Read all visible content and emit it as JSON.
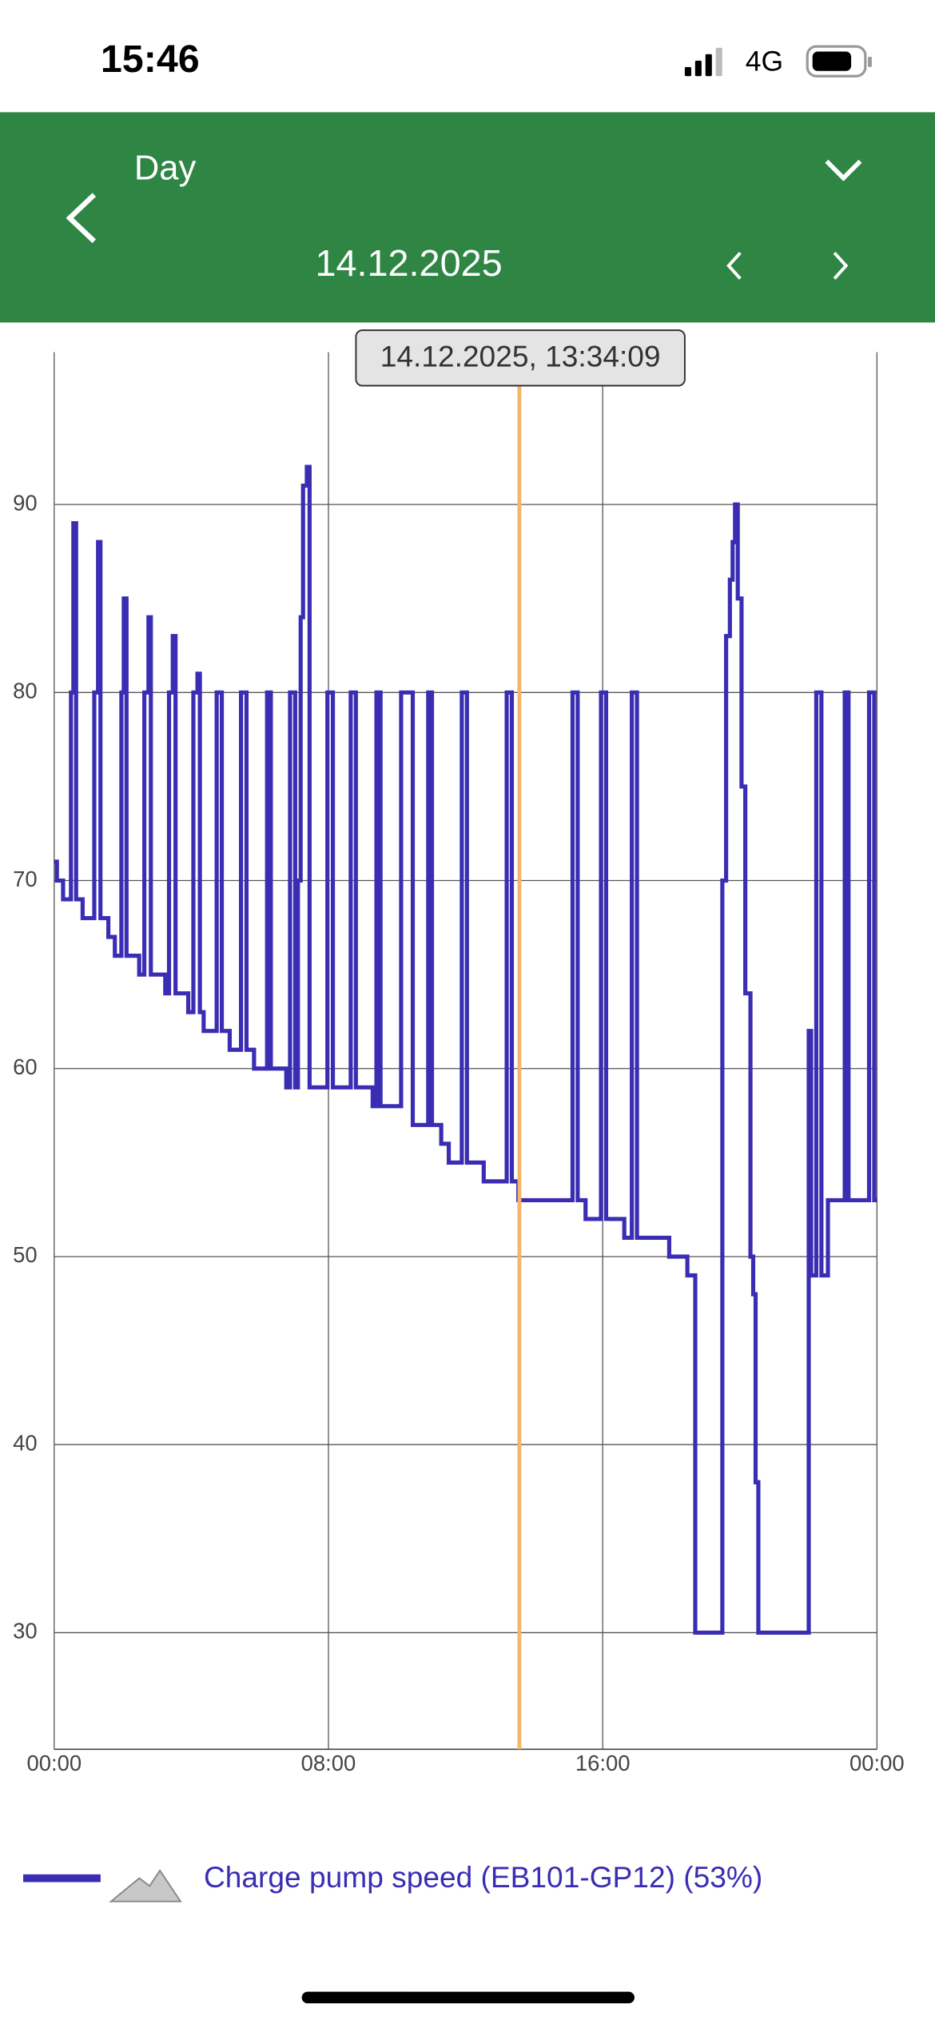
{
  "status_bar": {
    "time": "15:46",
    "network": "4G"
  },
  "header": {
    "title": "Day",
    "date": "14.12.2025"
  },
  "chart_data": {
    "type": "line",
    "step": "post",
    "x": [
      0,
      0.08,
      0.26,
      0.49,
      0.56,
      0.64,
      0.83,
      1.17,
      1.28,
      1.35,
      1.58,
      1.77,
      1.96,
      2.03,
      2.11,
      2.48,
      2.63,
      2.75,
      2.82,
      3.24,
      3.35,
      3.46,
      3.54,
      3.91,
      4.06,
      4.18,
      4.25,
      4.36,
      4.74,
      4.89,
      5.12,
      5.45,
      5.61,
      5.83,
      6.21,
      6.32,
      6.77,
      6.88,
      7.03,
      7.11,
      7.19,
      7.26,
      7.37,
      7.45,
      7.97,
      8.13,
      8.65,
      8.8,
      9.29,
      9.4,
      9.52,
      10.12,
      10.46,
      10.91,
      11.02,
      11.29,
      11.51,
      11.89,
      12.04,
      12.53,
      13.2,
      13.35,
      13.54,
      15.12,
      15.27,
      15.5,
      15.95,
      16.1,
      16.63,
      16.85,
      17.0,
      17.94,
      18.47,
      18.7,
      19.49,
      19.6,
      19.71,
      19.79,
      19.86,
      19.94,
      20.05,
      20.16,
      20.31,
      20.39,
      20.46,
      20.54,
      22.01,
      22.08,
      22.23,
      22.38,
      22.57,
      23.06,
      23.17,
      23.77,
      23.92,
      24
    ],
    "series": [
      {
        "name": "Charge pump speed (EB101-GP12) (53%)",
        "color": "#3a2db3",
        "values": [
          71,
          70,
          69,
          80,
          89,
          69,
          68,
          80,
          88,
          68,
          67,
          66,
          80,
          85,
          66,
          65,
          80,
          84,
          65,
          64,
          80,
          83,
          64,
          63,
          80,
          81,
          63,
          62,
          80,
          62,
          61,
          80,
          61,
          60,
          80,
          60,
          59,
          80,
          59,
          70,
          84,
          91,
          92,
          59,
          80,
          59,
          80,
          59,
          58,
          80,
          58,
          80,
          57,
          80,
          57,
          56,
          55,
          80,
          55,
          54,
          80,
          54,
          53,
          80,
          53,
          52,
          80,
          52,
          51,
          80,
          51,
          50,
          49,
          30,
          70,
          83,
          86,
          88,
          90,
          85,
          75,
          64,
          50,
          48,
          38,
          30,
          62,
          49,
          80,
          49,
          53,
          80,
          53,
          80,
          53,
          53
        ]
      }
    ],
    "xlim": [
      0,
      24
    ],
    "xticks": [
      {
        "value": 0,
        "label": "00:00"
      },
      {
        "value": 8,
        "label": "08:00"
      },
      {
        "value": 16,
        "label": "16:00"
      },
      {
        "value": 24,
        "label": "00:00"
      }
    ],
    "ylim": [
      23.8,
      98.1
    ],
    "yticks": [
      30,
      40,
      50,
      60,
      70,
      80,
      90
    ],
    "grid": true,
    "cursor": {
      "value": 13.57,
      "label": "14.12.2025, 13:34:09",
      "color": "#f5b56a"
    }
  }
}
